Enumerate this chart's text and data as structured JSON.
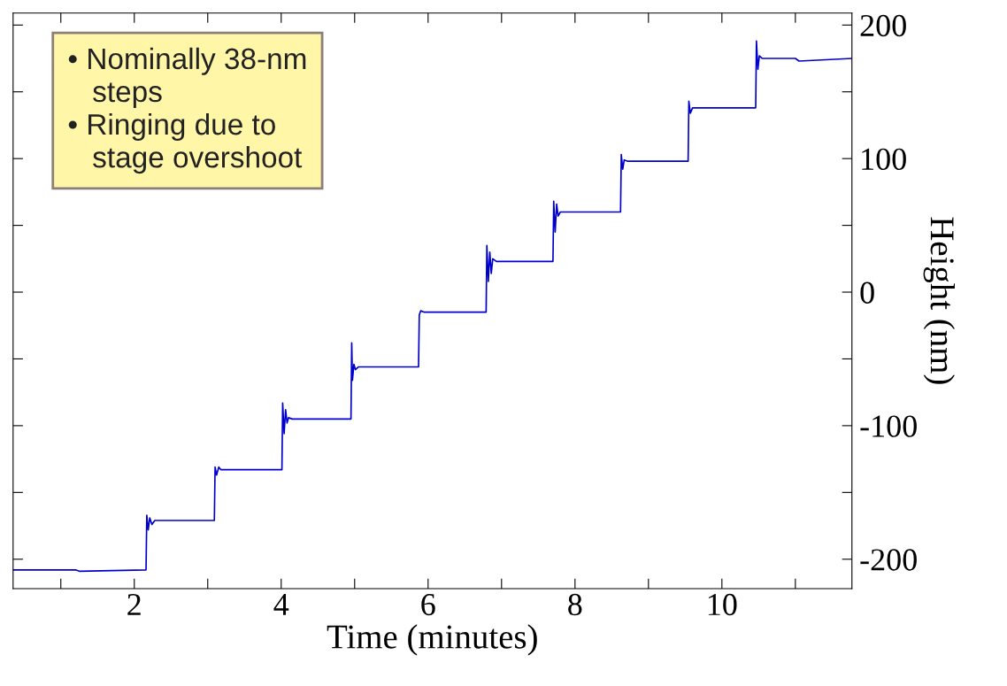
{
  "chart_data": {
    "type": "line",
    "xlabel": "Time (minutes)",
    "ylabel": "Height (nm)",
    "xlim": [
      0.35,
      11.77
    ],
    "ylim": [
      -222,
      209
    ],
    "xticks": [
      {
        "value": 1,
        "label": null
      },
      2,
      {
        "value": 3,
        "label": null
      },
      4,
      {
        "value": 5,
        "label": null
      },
      6,
      {
        "value": 7,
        "label": null
      },
      8,
      {
        "value": 9,
        "label": null
      },
      10,
      {
        "value": 11,
        "label": null
      }
    ],
    "yticks": [
      -200,
      {
        "value": -150,
        "label": null
      },
      -100,
      {
        "value": -50,
        "label": null
      },
      0,
      {
        "value": 50,
        "label": null
      },
      100,
      {
        "value": 150,
        "label": null
      },
      200
    ],
    "grid": false,
    "legend": false,
    "marker": "none",
    "line_style": "solid",
    "annotations": [
      "• Nominally 38-nm\n   steps",
      "• Ringing due to\n   stage overshoot"
    ],
    "series": [
      {
        "color": "#0000cc",
        "x": [
          0.35,
          1.2,
          1.25,
          2.16,
          2.17,
          2.19,
          2.21,
          2.24,
          2.28,
          2.35,
          3.09,
          3.1,
          3.12,
          3.15,
          3.18,
          3.25,
          4.01,
          4.02,
          4.04,
          4.06,
          4.08,
          4.1,
          4.15,
          4.95,
          4.96,
          4.97,
          4.99,
          5.01,
          5.05,
          5.87,
          5.88,
          5.9,
          5.95,
          6.79,
          6.8,
          6.82,
          6.84,
          6.86,
          6.88,
          6.93,
          7.7,
          7.71,
          7.73,
          7.75,
          7.77,
          7.8,
          8.62,
          8.63,
          8.65,
          8.67,
          8.72,
          9.54,
          9.55,
          9.57,
          9.6,
          10.46,
          10.47,
          10.49,
          10.51,
          10.55,
          11.0,
          11.05,
          11.77
        ],
        "values": [
          -208,
          -208,
          -209,
          -208,
          -167,
          -178,
          -169,
          -174,
          -171,
          -171,
          -171,
          -131,
          -137,
          -131,
          -133,
          -133,
          -133,
          -83,
          -106,
          -88,
          -98,
          -94,
          -95,
          -95,
          -38,
          -66,
          -54,
          -58,
          -56,
          -56,
          -17,
          -14,
          -15,
          -15,
          35,
          8,
          30,
          14,
          25,
          23,
          23,
          68,
          45,
          66,
          57,
          60,
          60,
          103,
          92,
          99,
          98,
          98,
          143,
          134,
          138,
          138,
          188,
          167,
          177,
          175,
          175,
          173,
          175
        ]
      }
    ]
  }
}
